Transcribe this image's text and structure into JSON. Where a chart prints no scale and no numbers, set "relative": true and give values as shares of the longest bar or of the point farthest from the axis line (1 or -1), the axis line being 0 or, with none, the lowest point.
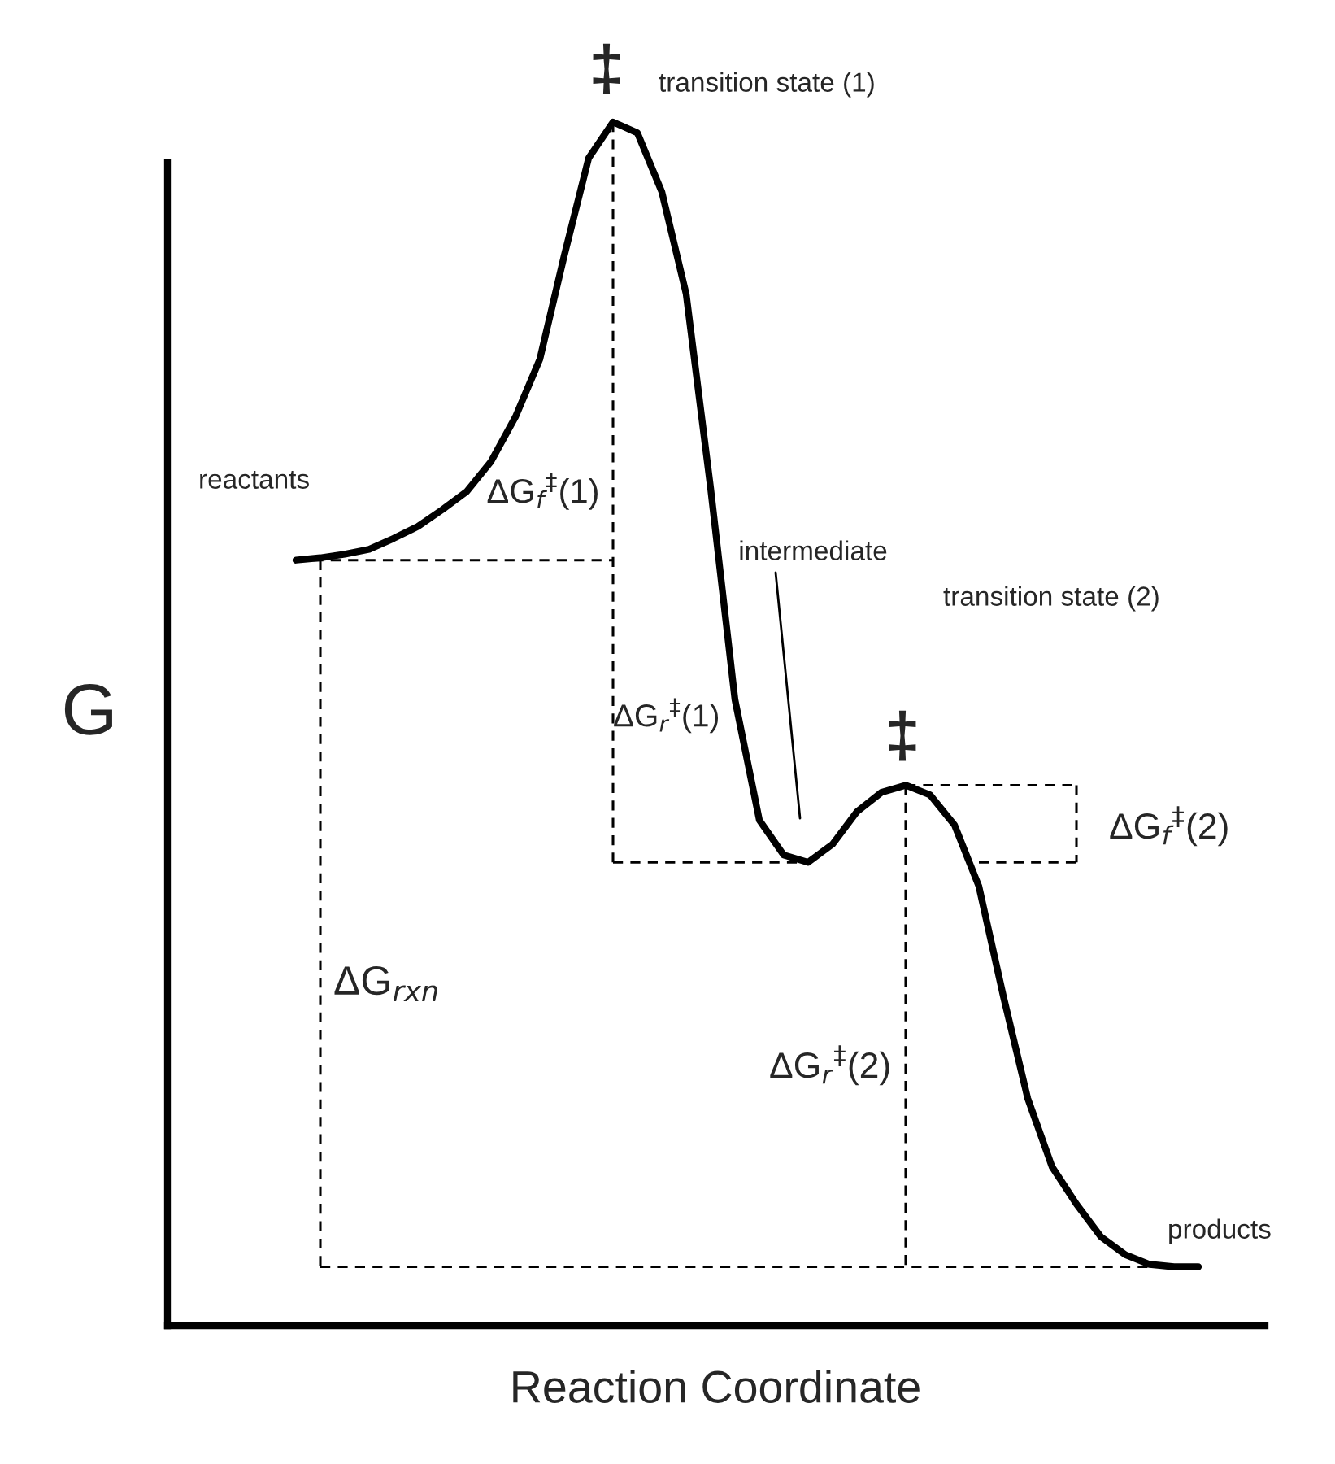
{
  "chart_data": {
    "type": "line",
    "relative": true,
    "xlabel": "Reaction Coordinate",
    "ylabel": "G",
    "legend": false,
    "marker": "none",
    "categories": [
      null,
      null,
      null,
      null,
      null,
      null,
      null,
      null,
      null,
      null,
      null,
      null,
      null,
      null,
      null,
      null,
      null,
      null,
      null,
      null,
      null,
      null,
      null,
      null,
      null,
      null,
      null,
      null,
      null,
      null,
      null,
      null,
      null,
      null,
      null,
      null,
      null,
      null
    ],
    "series": [
      {
        "color": "#000000",
        "line_style": "solid",
        "values": [
          0.636,
          0.638,
          0.641,
          0.645,
          0.654,
          0.664,
          0.678,
          0.693,
          0.718,
          0.755,
          0.803,
          0.889,
          0.97,
          1.0,
          0.991,
          0.942,
          0.857,
          0.696,
          0.52,
          0.42,
          0.391,
          0.385,
          0.4,
          0.427,
          0.443,
          0.449,
          0.441,
          0.416,
          0.365,
          0.274,
          0.189,
          0.132,
          0.101,
          0.074,
          0.059,
          0.051,
          0.049,
          0.049
        ]
      },
      {
        "color": "#000000",
        "line_style": "dashed",
        "values": [
          0.636,
          0.636,
          0.636,
          0.636,
          0.636,
          0.636,
          0.636,
          0.636,
          0.636,
          0.636,
          0.636,
          0.636,
          0.636,
          0.636,
          null,
          null,
          null,
          null,
          null,
          null,
          null,
          null,
          null,
          null,
          null,
          null,
          null,
          null,
          null,
          null,
          null,
          null,
          null,
          null,
          null,
          null,
          null,
          null
        ]
      },
      {
        "color": "#000000",
        "line_style": "dashed",
        "values": [
          null,
          null,
          null,
          null,
          null,
          null,
          null,
          null,
          null,
          null,
          null,
          null,
          null,
          0.385,
          0.385,
          0.385,
          0.385,
          0.385,
          0.385,
          0.385,
          0.385,
          0.385,
          null,
          null,
          null,
          null,
          null,
          null,
          null,
          null,
          null,
          null,
          null,
          null,
          null,
          null,
          null,
          null
        ]
      },
      {
        "color": "#000000",
        "line_style": "dashed",
        "values": [
          null,
          0.049,
          0.049,
          0.049,
          0.049,
          0.049,
          0.049,
          0.049,
          0.049,
          0.049,
          0.049,
          0.049,
          0.049,
          0.049,
          0.049,
          0.049,
          0.049,
          0.049,
          0.049,
          0.049,
          0.049,
          0.049,
          0.049,
          0.049,
          0.049,
          0.049,
          0.049,
          0.049,
          0.049,
          0.049,
          0.049,
          0.049,
          0.049,
          0.049,
          0.049,
          0.049,
          0.049,
          0.049
        ]
      },
      {
        "color": "#000000",
        "line_style": "dashed",
        "values": [
          null,
          null,
          null,
          null,
          null,
          null,
          null,
          null,
          null,
          null,
          null,
          null,
          null,
          null,
          null,
          null,
          null,
          null,
          null,
          null,
          null,
          null,
          null,
          null,
          null,
          0.449,
          0.449,
          0.449,
          0.449,
          0.449,
          0.449,
          0.449,
          0.449,
          null,
          null,
          null,
          null,
          null
        ]
      },
      {
        "color": "#000000",
        "line_style": "dashed",
        "values": [
          null,
          null,
          null,
          null,
          null,
          null,
          null,
          null,
          null,
          null,
          null,
          null,
          null,
          null,
          null,
          null,
          null,
          null,
          null,
          null,
          null,
          null,
          null,
          null,
          null,
          null,
          null,
          null,
          0.385,
          0.385,
          0.385,
          0.385,
          0.385,
          null,
          null,
          null,
          null,
          null
        ]
      }
    ],
    "annotations": [
      "‡",
      "transition state (1)",
      "reactants",
      "ΔG$_{f}$$^{‡}$(1)",
      "ΔG$_{r}$$^{‡}$(1)",
      "intermediate",
      "transition state (2)",
      "‡",
      "ΔG$_{f}$$^{‡}$(2)",
      "ΔG$_{rxn}$",
      "ΔG$_{r}$$^{‡}$(2)",
      "products"
    ]
  }
}
